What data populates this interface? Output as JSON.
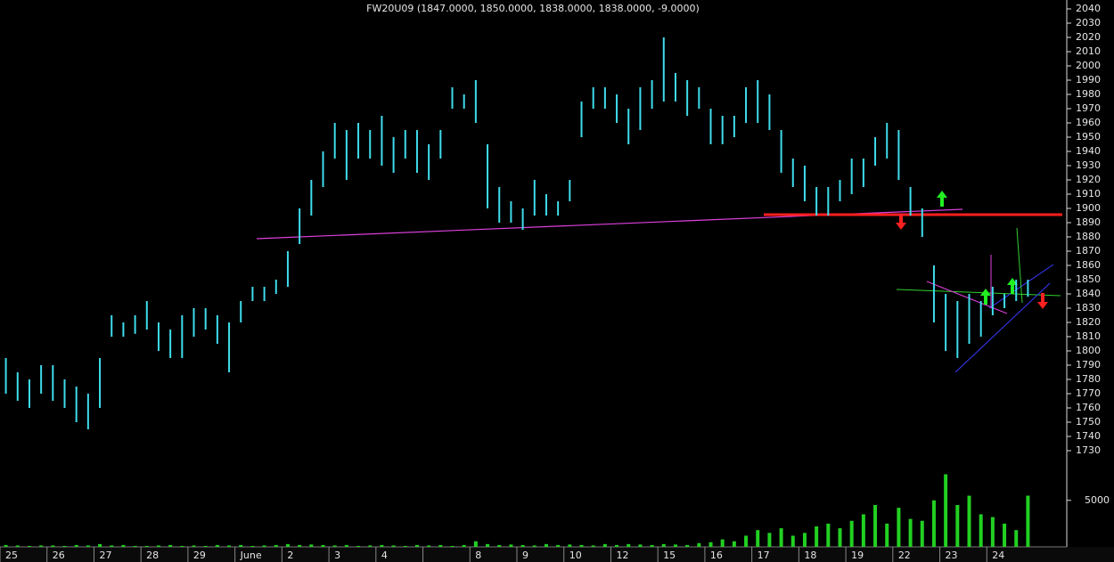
{
  "chart_data": {
    "type": "hlc",
    "title": "FW20U09 (1847.0000, 1850.0000, 1838.0000, 1838.0000, -9.0000)",
    "categories": [
      "25",
      null,
      null,
      null,
      "26",
      null,
      null,
      null,
      "27",
      null,
      null,
      null,
      "28",
      null,
      null,
      null,
      "29",
      null,
      null,
      null,
      "June",
      null,
      null,
      null,
      "2",
      null,
      null,
      null,
      "3",
      null,
      null,
      null,
      "4",
      null,
      null,
      null,
      null,
      null,
      null,
      null,
      "8",
      null,
      null,
      null,
      "9",
      null,
      null,
      null,
      "10",
      null,
      null,
      null,
      "12",
      null,
      null,
      null,
      "15",
      null,
      null,
      null,
      "16",
      null,
      null,
      null,
      "17",
      null,
      null,
      null,
      "18",
      null,
      null,
      null,
      "19",
      null,
      null,
      null,
      "22",
      null,
      null,
      null,
      "23",
      null,
      null,
      null,
      "24",
      null,
      null,
      null
    ],
    "high": [
      1795,
      1785,
      1780,
      1790,
      1790,
      1780,
      1775,
      1770,
      1795,
      1825,
      1820,
      1825,
      1835,
      1820,
      1815,
      1825,
      1830,
      1830,
      1825,
      1820,
      1835,
      1845,
      1845,
      1850,
      1870,
      1900,
      1920,
      1940,
      1960,
      1955,
      1960,
      1955,
      1965,
      1950,
      1955,
      1955,
      1945,
      1955,
      1985,
      1980,
      1990,
      1945,
      1915,
      1905,
      1900,
      1920,
      1910,
      1905,
      1920,
      1975,
      1985,
      1985,
      1980,
      1970,
      1985,
      1990,
      2020,
      1995,
      1990,
      1985,
      1970,
      1965,
      1965,
      1985,
      1990,
      1980,
      1955,
      1935,
      1930,
      1915,
      1915,
      1920,
      1935,
      1935,
      1950,
      1960,
      1955,
      1915,
      1900,
      1860,
      1840,
      1835,
      1840,
      1835,
      1845,
      1840,
      1850,
      1850
    ],
    "low": [
      1770,
      1765,
      1760,
      1770,
      1765,
      1760,
      1750,
      1745,
      1760,
      1810,
      1810,
      1812,
      1815,
      1800,
      1795,
      1795,
      1810,
      1815,
      1805,
      1785,
      1820,
      1835,
      1835,
      1840,
      1845,
      1875,
      1895,
      1915,
      1935,
      1920,
      1935,
      1935,
      1930,
      1925,
      1935,
      1925,
      1920,
      1935,
      1970,
      1970,
      1960,
      1900,
      1890,
      1890,
      1885,
      1895,
      1895,
      1895,
      1905,
      1950,
      1970,
      1970,
      1960,
      1945,
      1955,
      1970,
      1975,
      1975,
      1965,
      1970,
      1945,
      1945,
      1950,
      1960,
      1960,
      1955,
      1925,
      1915,
      1905,
      1895,
      1895,
      1905,
      1910,
      1915,
      1930,
      1935,
      1920,
      1895,
      1880,
      1820,
      1800,
      1795,
      1805,
      1810,
      1825,
      1830,
      1835,
      1838
    ],
    "color": "#3fdcec",
    "ylim": [
      1730,
      2040
    ],
    "yticks": [
      1730,
      1740,
      1750,
      1760,
      1770,
      1780,
      1790,
      1800,
      1810,
      1820,
      1830,
      1840,
      1850,
      1860,
      1870,
      1880,
      1890,
      1900,
      1910,
      1920,
      1930,
      1940,
      1950,
      1960,
      1970,
      1980,
      1990,
      2000,
      2010,
      2020,
      2030,
      2040
    ],
    "volume": [
      200,
      150,
      100,
      150,
      150,
      100,
      200,
      150,
      300,
      150,
      200,
      100,
      100,
      150,
      200,
      100,
      150,
      100,
      200,
      150,
      200,
      100,
      150,
      200,
      300,
      200,
      250,
      200,
      150,
      200,
      100,
      150,
      200,
      150,
      100,
      200,
      150,
      200,
      100,
      200,
      600,
      300,
      200,
      250,
      200,
      150,
      300,
      200,
      250,
      200,
      150,
      300,
      200,
      300,
      250,
      200,
      300,
      250,
      200,
      400,
      500,
      800,
      600,
      1200,
      1800,
      1500,
      2000,
      1200,
      1500,
      2200,
      2500,
      2000,
      2800,
      3500,
      4500,
      2500,
      4200,
      3000,
      2800,
      5000,
      7800,
      4500,
      5500,
      3500,
      3200,
      2500,
      1800,
      5500
    ],
    "volume_color": "#22d022",
    "y2lim": [
      0,
      9000
    ],
    "y2ticks": [
      5000
    ]
  }
}
